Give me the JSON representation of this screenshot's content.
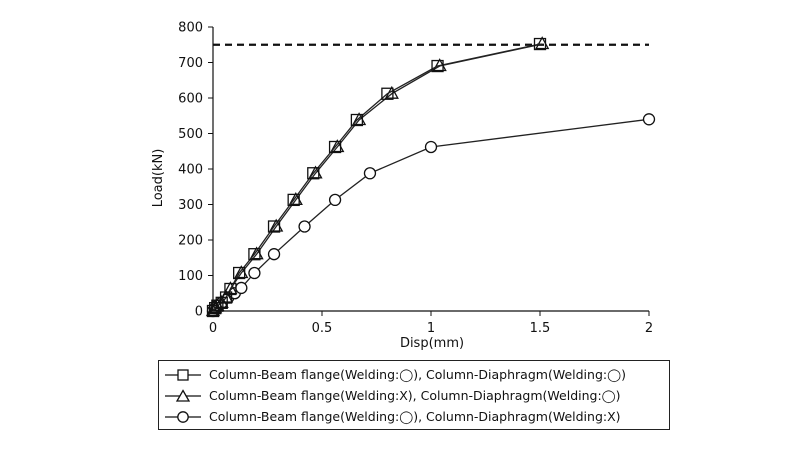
{
  "chart_data": {
    "type": "line",
    "xlabel": "Disp(mm)",
    "ylabel": "Load(kN)",
    "xlim": [
      0,
      2
    ],
    "ylim": [
      0,
      800
    ],
    "xticks": [
      "0",
      "0.5",
      "1",
      "1.5",
      "2"
    ],
    "xtick_values": [
      0,
      0.5,
      1,
      1.5,
      2
    ],
    "yticks": [
      "0",
      "100",
      "200",
      "300",
      "400",
      "500",
      "600",
      "700",
      "800"
    ],
    "ytick_values": [
      0,
      100,
      200,
      300,
      400,
      500,
      600,
      700,
      800
    ],
    "grid": false,
    "legend_position": "bottom",
    "reference_line": {
      "y": 750,
      "style": "dashed"
    },
    "series": [
      {
        "name": "Column-Beam flange(Welding:◯), Column-Diaphragm(Welding:◯)",
        "marker": "square",
        "x": [
          0,
          0.01,
          0.02,
          0.04,
          0.06,
          0.08,
          0.12,
          0.19,
          0.28,
          0.37,
          0.46,
          0.56,
          0.66,
          0.8,
          1.03,
          1.5
        ],
        "y": [
          0,
          8,
          15,
          23,
          38,
          62,
          107,
          160,
          238,
          313,
          388,
          462,
          538,
          612,
          690,
          752
        ]
      },
      {
        "name": "Column-Beam flange(Welding:X), Column-Diaphragm(Welding:◯)",
        "marker": "triangle",
        "x": [
          0,
          0.01,
          0.02,
          0.04,
          0.06,
          0.08,
          0.13,
          0.2,
          0.29,
          0.38,
          0.47,
          0.57,
          0.67,
          0.82,
          1.04,
          1.51
        ],
        "y": [
          0,
          8,
          15,
          23,
          38,
          62,
          107,
          160,
          238,
          313,
          388,
          462,
          538,
          612,
          690,
          752
        ]
      },
      {
        "name": "Column-Beam flange(Welding:◯), Column-Diaphragm(Welding:X)",
        "marker": "circle",
        "x": [
          0,
          0.01,
          0.02,
          0.04,
          0.07,
          0.1,
          0.13,
          0.19,
          0.28,
          0.42,
          0.56,
          0.72,
          1.0,
          2.0
        ],
        "y": [
          0,
          8,
          15,
          23,
          38,
          50,
          65,
          107,
          160,
          238,
          313,
          388,
          462,
          540
        ]
      }
    ]
  }
}
